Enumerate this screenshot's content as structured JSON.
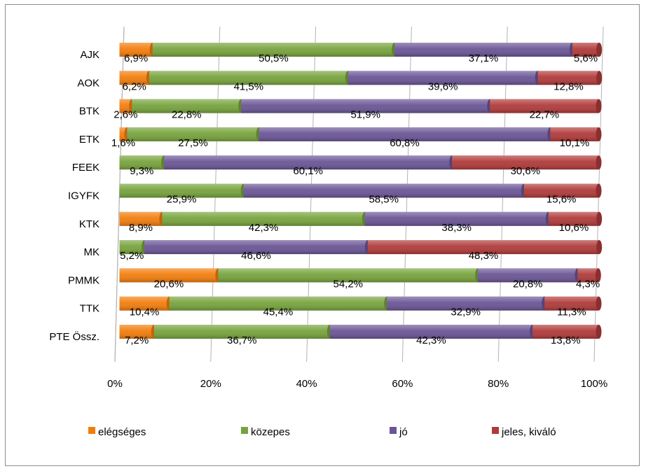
{
  "chart_data": {
    "type": "bar",
    "orientation": "horizontal",
    "stacked": "percent",
    "style": "3d-cylinder",
    "categories": [
      "AJK",
      "AOK",
      "BTK",
      "ETK",
      "FEEK",
      "IGYFK",
      "KTK",
      "MK",
      "PMMK",
      "TTK",
      "PTE Össz."
    ],
    "series": [
      {
        "name": "elégséges",
        "color": "#f27d0c",
        "values": [
          6.9,
          6.2,
          2.6,
          1.6,
          0,
          0,
          8.9,
          0,
          20.6,
          10.4,
          7.2
        ],
        "labels": [
          "6,9%",
          "6,2%",
          "2,6%",
          "1,6%",
          "",
          "",
          "8,9%",
          "",
          "20,6%",
          "10,4%",
          "7,2%"
        ]
      },
      {
        "name": "közepes",
        "color": "#77a33c",
        "values": [
          50.5,
          41.5,
          22.8,
          27.5,
          9.3,
          25.9,
          42.3,
          5.2,
          54.2,
          45.4,
          36.7
        ],
        "labels": [
          "50,5%",
          "41,5%",
          "22,8%",
          "27,5%",
          "9,3%",
          "25,9%",
          "42,3%",
          "5,2%",
          "54,2%",
          "45,4%",
          "36,7%"
        ]
      },
      {
        "name": "jó",
        "color": "#6a5595",
        "values": [
          37.1,
          39.6,
          51.9,
          60.8,
          60.1,
          58.5,
          38.3,
          46.6,
          20.8,
          32.9,
          42.3
        ],
        "labels": [
          "37,1%",
          "39,6%",
          "51,9%",
          "60,8%",
          "60,1%",
          "58,5%",
          "38,3%",
          "46,6%",
          "20,8%",
          "32,9%",
          "42,3%"
        ]
      },
      {
        "name": "jeles, kiváló",
        "color": "#b03a3a",
        "values": [
          5.6,
          12.8,
          22.7,
          10.1,
          30.6,
          15.6,
          10.6,
          48.3,
          4.3,
          11.3,
          13.8
        ],
        "labels": [
          "5,6%",
          "12,8%",
          "22,7%",
          "10,1%",
          "30,6%",
          "15,6%",
          "10,6%",
          "48,3%",
          "4,3%",
          "11,3%",
          "13,8%"
        ]
      }
    ],
    "x_ticks": [
      "0%",
      "20%",
      "40%",
      "60%",
      "80%",
      "100%"
    ],
    "xlim": [
      0,
      100
    ],
    "grid": true,
    "legend_position": "bottom"
  }
}
